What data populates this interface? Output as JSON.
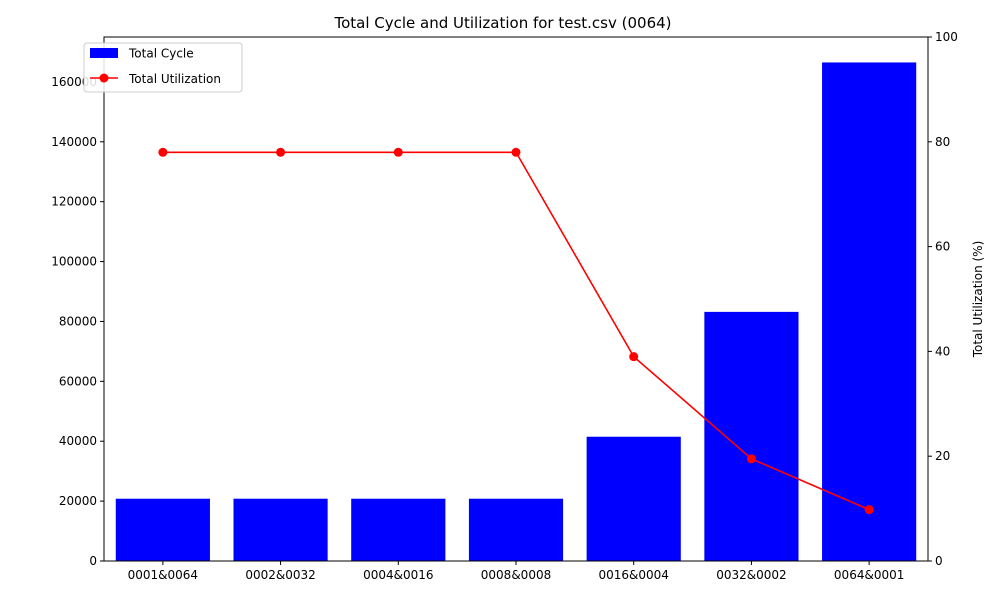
{
  "chart_data": {
    "type": "bar",
    "title": "Total Cycle and Utilization for test.csv (0064)",
    "xlabel": "",
    "ylabel_left": "",
    "ylabel_right": "Total Utilization (%)",
    "categories": [
      "0001&0064",
      "0002&0032",
      "0004&0016",
      "0008&0008",
      "0016&0004",
      "0032&0002",
      "0064&0001"
    ],
    "series": [
      {
        "name": "Total Cycle",
        "type": "bar",
        "axis": "left",
        "color": "#0000ff",
        "values": [
          20800,
          20800,
          20800,
          20800,
          41500,
          83200,
          166500
        ]
      },
      {
        "name": "Total Utilization",
        "type": "line",
        "axis": "right",
        "color": "#ff0000",
        "marker": "circle",
        "values": [
          78,
          78,
          78,
          78,
          39,
          19.5,
          9.8
        ]
      }
    ],
    "ylim_left": [
      0,
      175000
    ],
    "yticks_left": [
      "0",
      "20000",
      "40000",
      "60000",
      "80000",
      "100000",
      "120000",
      "140000",
      "160000"
    ],
    "ylim_right": [
      0,
      100
    ],
    "yticks_right": [
      "0",
      "20",
      "40",
      "60",
      "80",
      "100"
    ],
    "legend_position": "top-left",
    "grid": false
  }
}
